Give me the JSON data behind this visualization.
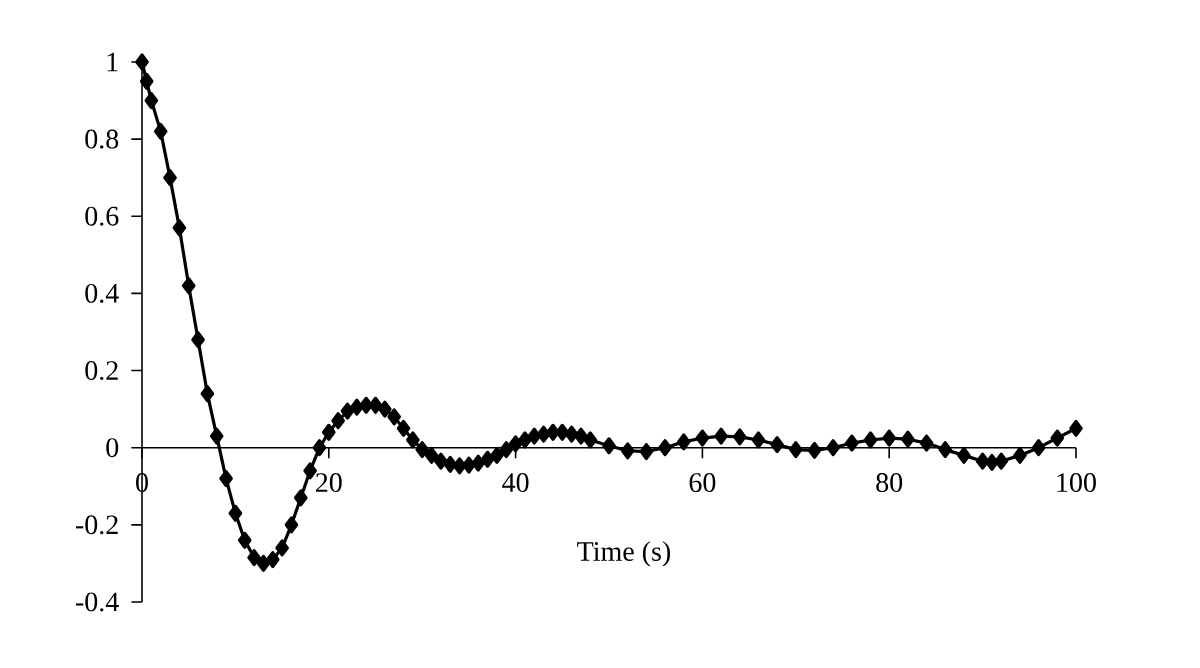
{
  "chart_data": {
    "type": "line",
    "xlabel": "Time (s)",
    "xlim": [
      0,
      100
    ],
    "xticks": [
      0,
      20,
      40,
      60,
      80,
      100
    ],
    "ylim": [
      -0.4,
      1
    ],
    "yticks": [
      -0.4,
      -0.2,
      0,
      0.2,
      0.4,
      0.6,
      0.8,
      1
    ],
    "marker": "diamond",
    "line_style": "solid",
    "grid": false,
    "x": [
      0,
      0.5,
      1,
      2,
      3,
      4,
      5,
      6,
      7,
      8,
      9,
      10,
      11,
      12,
      13,
      14,
      15,
      16,
      17,
      18,
      19,
      20,
      21,
      22,
      23,
      24,
      25,
      26,
      27,
      28,
      29,
      30,
      31,
      32,
      33,
      34,
      35,
      36,
      37,
      38,
      39,
      40,
      41,
      42,
      43,
      44,
      45,
      46,
      47,
      48,
      50,
      52,
      54,
      56,
      58,
      60,
      62,
      64,
      66,
      68,
      70,
      72,
      74,
      76,
      78,
      80,
      82,
      84,
      86,
      88,
      90,
      91,
      92,
      94,
      96,
      98,
      100
    ],
    "series": [
      {
        "color": "#000000",
        "values": [
          1,
          0.95,
          0.9,
          0.82,
          0.7,
          0.57,
          0.42,
          0.28,
          0.14,
          0.03,
          -0.08,
          -0.17,
          -0.24,
          -0.285,
          -0.3,
          -0.29,
          -0.26,
          -0.2,
          -0.13,
          -0.06,
          0,
          0.04,
          0.07,
          0.095,
          0.105,
          0.11,
          0.11,
          0.1,
          0.08,
          0.05,
          0.02,
          -0.005,
          -0.02,
          -0.035,
          -0.043,
          -0.047,
          -0.045,
          -0.04,
          -0.03,
          -0.02,
          -0.005,
          0.01,
          0.02,
          0.03,
          0.035,
          0.04,
          0.04,
          0.035,
          0.03,
          0.02,
          0.005,
          -0.008,
          -0.01,
          0,
          0.015,
          0.025,
          0.03,
          0.028,
          0.02,
          0.008,
          -0.005,
          -0.007,
          0,
          0.012,
          0.02,
          0.025,
          0.022,
          0.012,
          -0.005,
          -0.02,
          -0.035,
          -0.038,
          -0.035,
          -0.02,
          0,
          0.025,
          0.05
        ]
      }
    ]
  }
}
